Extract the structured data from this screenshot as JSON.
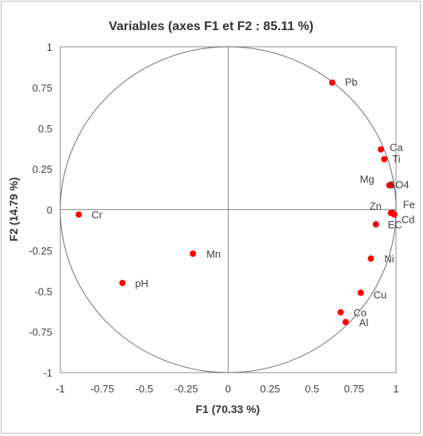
{
  "chart_data": {
    "type": "scatter",
    "title": "Variables (axes F1 et F2 : 85.11 %)",
    "xlabel": "F1 (70.33 %)",
    "ylabel": "F2 (14.79 %)",
    "xlim": [
      -1,
      1
    ],
    "ylim": [
      -1,
      1
    ],
    "xticks": [
      "-1",
      "-0.75",
      "-0.5",
      "-0.25",
      "0",
      "0.25",
      "0.5",
      "0.75",
      "1"
    ],
    "yticks": [
      "1",
      "0.75",
      "0.5",
      "0.25",
      "0",
      "-0.25",
      "-0.5",
      "-0.75",
      "-1"
    ],
    "unit_circle": true,
    "grid": false,
    "point_color": "#ff0000",
    "points": [
      {
        "label": "Pb",
        "x": 0.62,
        "y": 0.78
      },
      {
        "label": "Ca",
        "x": 0.91,
        "y": 0.37
      },
      {
        "label": "Ti",
        "x": 0.93,
        "y": 0.31
      },
      {
        "label": "Mg",
        "x": 0.96,
        "y": 0.15
      },
      {
        "label": "SO4",
        "x": 0.97,
        "y": 0.15
      },
      {
        "label": "Fe",
        "x": 0.98,
        "y": -0.02
      },
      {
        "label": "Cd",
        "x": 0.99,
        "y": -0.03
      },
      {
        "label": "Zn",
        "x": 0.97,
        "y": -0.02
      },
      {
        "label": "EC",
        "x": 0.88,
        "y": -0.09
      },
      {
        "label": "Ni",
        "x": 0.85,
        "y": -0.3
      },
      {
        "label": "Cu",
        "x": 0.79,
        "y": -0.51
      },
      {
        "label": "Co",
        "x": 0.67,
        "y": -0.63
      },
      {
        "label": "Al",
        "x": 0.7,
        "y": -0.69
      },
      {
        "label": "Cr",
        "x": -0.89,
        "y": -0.03
      },
      {
        "label": "Mn",
        "x": -0.21,
        "y": -0.27
      },
      {
        "label": "pH",
        "x": -0.63,
        "y": -0.45
      }
    ]
  }
}
